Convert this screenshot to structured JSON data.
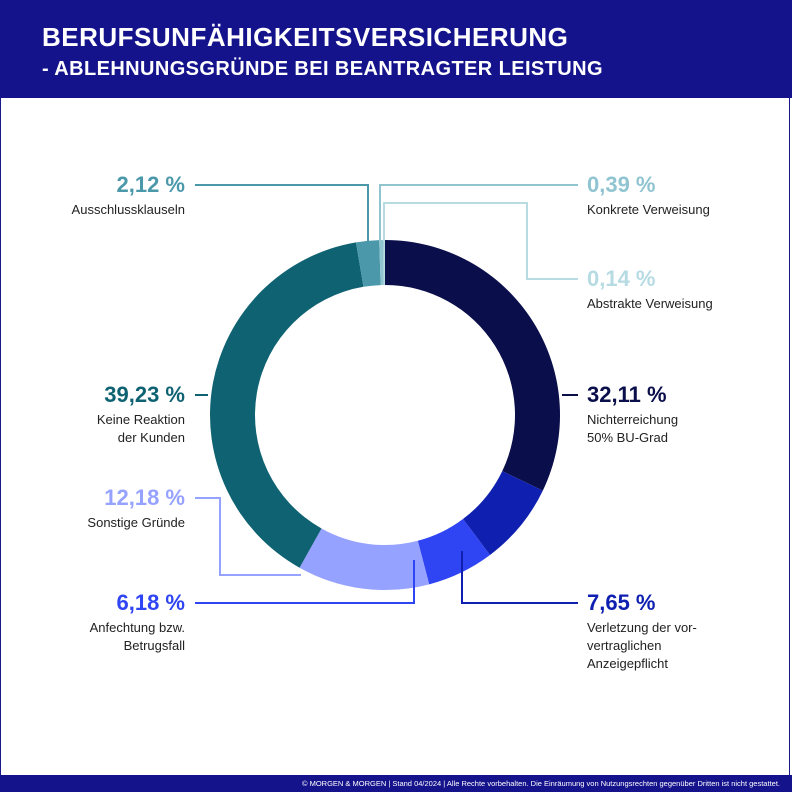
{
  "header": {
    "title_line1": "BERUFSUNFÄHIGKEITSVERSICHERUNG",
    "title_line2": "- ABLEHNUNGSGRÜNDE BEI BEANTRAGTER LEISTUNG"
  },
  "footer": {
    "text": "© MORGEN & MORGEN | Stand 04/2024 | Alle Rechte vorbehalten. Die Einräumung von Nutzungsrechten gegenüber Dritten ist nicht gestattet."
  },
  "colors": {
    "header_bg": "#15138c"
  },
  "chart_data": {
    "type": "pie",
    "donut": true,
    "unit": "%",
    "slices": [
      {
        "key": "nichterreichung",
        "value_label": "32,11 %",
        "value": 32.11,
        "label_lines": [
          "Nichterreichung",
          "50% BU-Grad"
        ],
        "color": "#0a0e4a"
      },
      {
        "key": "verletzung",
        "value_label": "7,65 %",
        "value": 7.65,
        "label_lines": [
          "Verletzung der vor-",
          "vertraglichen",
          "Anzeigepflicht"
        ],
        "color": "#0f20b0"
      },
      {
        "key": "anfechtung",
        "value_label": "6,18 %",
        "value": 6.18,
        "label_lines": [
          "Anfechtung bzw.",
          "Betrugsfall"
        ],
        "color": "#2f44f2"
      },
      {
        "key": "sonstige",
        "value_label": "12,18 %",
        "value": 12.18,
        "label_lines": [
          "Sonstige Gründe"
        ],
        "color": "#96a2ff"
      },
      {
        "key": "keine_reaktion",
        "value_label": "39,23 %",
        "value": 39.23,
        "label_lines": [
          "Keine Reaktion",
          "der Kunden"
        ],
        "color": "#0f6272"
      },
      {
        "key": "ausschluss",
        "value_label": "2,12 %",
        "value": 2.12,
        "label_lines": [
          "Ausschlussklauseln"
        ],
        "color": "#4a98aa"
      },
      {
        "key": "konkrete",
        "value_label": "0,39 %",
        "value": 0.39,
        "label_lines": [
          "Konkrete Verweisung"
        ],
        "color": "#8fc4d0"
      },
      {
        "key": "abstrakte",
        "value_label": "0,14 %",
        "value": 0.14,
        "label_lines": [
          "Abstrakte Verweisung"
        ],
        "color": "#b6dbe3"
      }
    ]
  }
}
